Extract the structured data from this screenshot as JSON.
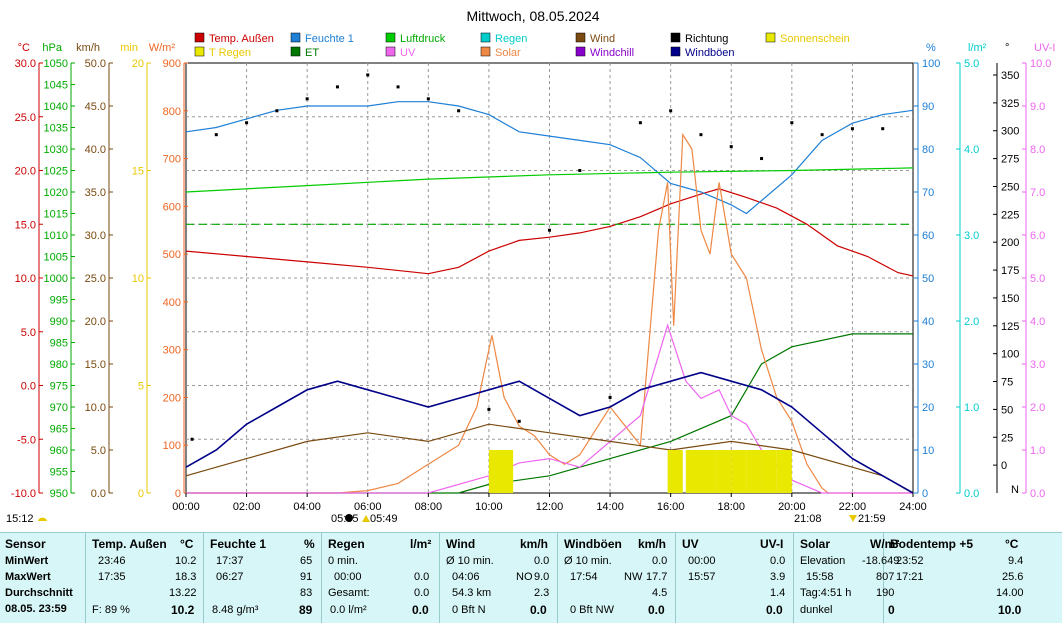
{
  "title": "Mittwoch, 08.05.2024",
  "legend": [
    {
      "label": "Temp. Außen",
      "color": "#cc0000"
    },
    {
      "label": "Feuchte 1",
      "color": "#1e7fd6"
    },
    {
      "label": "Luftdruck",
      "color": "#00cc00"
    },
    {
      "label": "Regen",
      "color": "#00cccc"
    },
    {
      "label": "Wind",
      "color": "#7a4a10"
    },
    {
      "label": "Richtung",
      "color": "#000000"
    },
    {
      "label": "Sonnenschein",
      "color": "#e8e800"
    },
    {
      "label": "T Regen",
      "color": "#e8e800"
    },
    {
      "label": "ET",
      "color": "#007700"
    },
    {
      "label": "UV",
      "color": "#ee66ee"
    },
    {
      "label": "Solar",
      "color": "#ee8844"
    },
    {
      "label": "Windchill",
      "color": "#8800cc"
    },
    {
      "label": "Windböen",
      "color": "#000088"
    }
  ],
  "axes_left": [
    {
      "unit": "°C",
      "color": "#cc0000",
      "ticks": [
        "30.0",
        "25.0",
        "20.0",
        "15.0",
        "10.0",
        "5.0",
        "0.0",
        "-5.0",
        "-10.0"
      ]
    },
    {
      "unit": "hPa",
      "color": "#00aa00",
      "ticks": [
        "1050",
        "1045",
        "1040",
        "1035",
        "1030",
        "1025",
        "1020",
        "1015",
        "1010",
        "1005",
        "1000",
        "995",
        "990",
        "985",
        "980",
        "975",
        "970",
        "965",
        "960",
        "955",
        "950"
      ]
    },
    {
      "unit": "km/h",
      "color": "#7a4a10",
      "ticks": [
        "50.0",
        "45.0",
        "40.0",
        "35.0",
        "30.0",
        "25.0",
        "20.0",
        "15.0",
        "10.0",
        "5.0",
        "0.0"
      ]
    },
    {
      "unit": "min",
      "color": "#e8c800",
      "ticks": [
        "20",
        "15",
        "10",
        "5",
        "0"
      ]
    },
    {
      "unit": "W/m²",
      "color": "#ee6622",
      "ticks": [
        "900",
        "800",
        "700",
        "600",
        "500",
        "400",
        "300",
        "200",
        "100",
        "0"
      ]
    }
  ],
  "axes_right": [
    {
      "unit": "%",
      "color": "#1e7fd6",
      "ticks": [
        "100",
        "90",
        "80",
        "70",
        "60",
        "50",
        "40",
        "30",
        "20",
        "10",
        "0"
      ]
    },
    {
      "unit": "l/m²",
      "color": "#00cccc",
      "ticks": [
        "5.0",
        "4.0",
        "3.0",
        "2.0",
        "1.0",
        "0.0"
      ]
    },
    {
      "unit": "°",
      "color": "#000000",
      "ticks": [
        "350",
        "325",
        "300",
        "275",
        "250",
        "225",
        "200",
        "175",
        "150",
        "125",
        "100",
        "75",
        "50",
        "25",
        "0"
      ],
      "bottom": "N"
    },
    {
      "unit": "UV-I",
      "color": "#ee66ee",
      "ticks": [
        "10.0",
        "9.0",
        "8.0",
        "7.0",
        "6.0",
        "5.0",
        "4.0",
        "3.0",
        "2.0",
        "1.0",
        "0.0"
      ]
    }
  ],
  "x_ticks": [
    "00:00",
    "02:00",
    "04:00",
    "06:00",
    "08:00",
    "10:00",
    "12:00",
    "14:00",
    "16:00",
    "18:00",
    "20:00",
    "22:00",
    "24:00"
  ],
  "sun_moon": {
    "moonset": "15:12",
    "sunrise": "05:49",
    "moonrise": "05:05",
    "sunset": "21:08",
    "dusk": "21:59"
  },
  "chart_data": {
    "type": "line",
    "title": "Mittwoch, 08.05.2024",
    "x_unit": "hour",
    "xlim": [
      0,
      24
    ],
    "series": [
      {
        "name": "Temp. Außen",
        "unit": "°C",
        "points": [
          [
            0,
            12.5
          ],
          [
            2,
            12.0
          ],
          [
            4,
            11.5
          ],
          [
            6,
            11.0
          ],
          [
            8,
            10.4
          ],
          [
            9,
            11.0
          ],
          [
            10,
            12.5
          ],
          [
            11,
            13.5
          ],
          [
            12,
            13.8
          ],
          [
            13,
            14.2
          ],
          [
            14,
            14.8
          ],
          [
            15,
            15.7
          ],
          [
            16,
            16.9
          ],
          [
            17,
            17.8
          ],
          [
            17.6,
            18.3
          ],
          [
            18.5,
            17.5
          ],
          [
            19.5,
            16.5
          ],
          [
            20.5,
            15.0
          ],
          [
            21.5,
            13.0
          ],
          [
            22.5,
            12.0
          ],
          [
            23.5,
            10.5
          ],
          [
            24,
            10.2
          ]
        ]
      },
      {
        "name": "Feuchte 1",
        "unit": "%",
        "points": [
          [
            0,
            84
          ],
          [
            1,
            85
          ],
          [
            2,
            87
          ],
          [
            3,
            89
          ],
          [
            4,
            90
          ],
          [
            5,
            90
          ],
          [
            6,
            90
          ],
          [
            7,
            91
          ],
          [
            8,
            91
          ],
          [
            9,
            90
          ],
          [
            10,
            88
          ],
          [
            11,
            84
          ],
          [
            12,
            83
          ],
          [
            13,
            82
          ],
          [
            14,
            81
          ],
          [
            15,
            78
          ],
          [
            16,
            72
          ],
          [
            17,
            70
          ],
          [
            18,
            67
          ],
          [
            18.5,
            65
          ],
          [
            19,
            68
          ],
          [
            20,
            74
          ],
          [
            21,
            82
          ],
          [
            22,
            86
          ],
          [
            23,
            88
          ],
          [
            24,
            89
          ]
        ]
      },
      {
        "name": "Luftdruck",
        "unit": "hPa",
        "points": [
          [
            0,
            1020.0
          ],
          [
            4,
            1021.5
          ],
          [
            8,
            1023.0
          ],
          [
            12,
            1024.0
          ],
          [
            16,
            1024.6
          ],
          [
            20,
            1025.0
          ],
          [
            24,
            1025.6
          ]
        ]
      },
      {
        "name": "T Regen",
        "unit": "°C",
        "points": [
          [
            0,
            15.0
          ],
          [
            24,
            15.0
          ]
        ]
      },
      {
        "name": "ET",
        "unit": "l/m²",
        "points": [
          [
            0,
            0.0
          ],
          [
            9,
            0.0
          ],
          [
            10,
            0.1
          ],
          [
            12,
            0.2
          ],
          [
            14,
            0.4
          ],
          [
            16,
            0.6
          ],
          [
            18,
            0.9
          ],
          [
            19,
            1.5
          ],
          [
            20,
            1.7
          ],
          [
            22,
            1.85
          ],
          [
            24,
            1.85
          ]
        ]
      },
      {
        "name": "Solar",
        "unit": "W/m²",
        "points": [
          [
            0,
            0
          ],
          [
            5,
            0
          ],
          [
            6,
            5
          ],
          [
            7,
            20
          ],
          [
            8,
            60
          ],
          [
            9,
            100
          ],
          [
            9.6,
            180
          ],
          [
            10.1,
            330
          ],
          [
            10.5,
            200
          ],
          [
            11,
            140
          ],
          [
            11.5,
            120
          ],
          [
            12,
            80
          ],
          [
            12.5,
            60
          ],
          [
            13,
            80
          ],
          [
            14,
            180
          ],
          [
            15,
            100
          ],
          [
            15.6,
            550
          ],
          [
            15.9,
            650
          ],
          [
            16.1,
            350
          ],
          [
            16.4,
            750
          ],
          [
            16.7,
            720
          ],
          [
            17,
            550
          ],
          [
            17.3,
            500
          ],
          [
            17.6,
            650
          ],
          [
            18,
            500
          ],
          [
            18.5,
            450
          ],
          [
            19,
            300
          ],
          [
            19.5,
            200
          ],
          [
            20,
            150
          ],
          [
            20.5,
            60
          ],
          [
            21,
            10
          ],
          [
            21.2,
            0
          ],
          [
            24,
            0
          ]
        ]
      },
      {
        "name": "UV",
        "unit": "UV-I",
        "points": [
          [
            0,
            0
          ],
          [
            8,
            0
          ],
          [
            10,
            0.4
          ],
          [
            11,
            0.7
          ],
          [
            12,
            0.8
          ],
          [
            13,
            0.6
          ],
          [
            14,
            1.2
          ],
          [
            15,
            1.8
          ],
          [
            15.9,
            3.9
          ],
          [
            16.5,
            2.6
          ],
          [
            17,
            2.2
          ],
          [
            17.6,
            2.4
          ],
          [
            18,
            1.8
          ],
          [
            18.5,
            1.6
          ],
          [
            19,
            1.0
          ],
          [
            20,
            0.3
          ],
          [
            21,
            0
          ],
          [
            24,
            0
          ]
        ]
      },
      {
        "name": "Wind",
        "unit": "km/h",
        "points": [
          [
            0,
            2
          ],
          [
            2,
            4
          ],
          [
            4,
            6
          ],
          [
            6,
            7
          ],
          [
            8,
            6
          ],
          [
            10,
            8
          ],
          [
            12,
            7
          ],
          [
            14,
            6
          ],
          [
            16,
            5
          ],
          [
            18,
            6
          ],
          [
            20,
            5
          ],
          [
            22,
            3
          ],
          [
            23,
            2
          ],
          [
            24,
            0
          ]
        ]
      },
      {
        "name": "Windböen",
        "unit": "km/h",
        "points": [
          [
            0,
            3
          ],
          [
            1,
            5
          ],
          [
            2,
            8
          ],
          [
            3,
            10
          ],
          [
            4,
            12
          ],
          [
            5,
            13
          ],
          [
            6,
            12
          ],
          [
            7,
            11
          ],
          [
            8,
            10
          ],
          [
            9,
            11
          ],
          [
            10,
            12
          ],
          [
            11,
            13
          ],
          [
            12,
            11
          ],
          [
            13,
            9
          ],
          [
            14,
            10
          ],
          [
            15,
            12
          ],
          [
            16,
            13
          ],
          [
            17,
            14
          ],
          [
            18,
            13
          ],
          [
            19,
            12
          ],
          [
            20,
            10
          ],
          [
            21,
            7
          ],
          [
            22,
            4
          ],
          [
            23,
            2
          ],
          [
            24,
            0
          ]
        ]
      },
      {
        "name": "Richtung",
        "unit": "°",
        "points": [
          [
            0.2,
            45
          ],
          [
            1,
            300
          ],
          [
            2,
            310
          ],
          [
            3,
            320
          ],
          [
            4,
            330
          ],
          [
            5,
            340
          ],
          [
            6,
            350
          ],
          [
            7,
            340
          ],
          [
            8,
            330
          ],
          [
            9,
            320
          ],
          [
            10,
            70
          ],
          [
            11,
            60
          ],
          [
            12,
            220
          ],
          [
            13,
            270
          ],
          [
            14,
            80
          ],
          [
            15,
            310
          ],
          [
            16,
            320
          ],
          [
            17,
            300
          ],
          [
            18,
            290
          ],
          [
            19,
            280
          ],
          [
            20,
            310
          ],
          [
            21,
            300
          ],
          [
            22,
            305
          ],
          [
            23,
            305
          ]
        ]
      },
      {
        "name": "Sonnenschein",
        "unit": "min",
        "bars": [
          [
            10,
            2
          ],
          [
            10.3,
            2
          ],
          [
            15.9,
            2
          ],
          [
            16.5,
            2
          ],
          [
            17,
            2
          ],
          [
            17.5,
            2
          ],
          [
            18,
            2
          ],
          [
            18.5,
            2
          ],
          [
            19,
            2
          ],
          [
            19.5,
            2
          ]
        ]
      }
    ]
  },
  "footer": {
    "sensor": {
      "title": "Sensor",
      "rows": [
        "MinWert",
        "MaxWert",
        "Durchschnitt",
        "08.05. 23:59"
      ]
    },
    "temp": {
      "title": "Temp. Außen",
      "unit": "°C",
      "r1a": "23:46",
      "r1b": "10.2",
      "r2a": "17:35",
      "r2b": "18.3",
      "r3b": "13.22",
      "r4a": "F: 89 %",
      "r4b": "10.2"
    },
    "feuchte": {
      "title": "Feuchte 1",
      "unit": "%",
      "r1a": "17:37",
      "r1b": "65",
      "r2a": "06:27",
      "r2b": "91",
      "r3b": "83",
      "r4a": "8.48 g/m³",
      "r4b": "89"
    },
    "regen": {
      "title": "Regen",
      "unit": "l/m²",
      "r1a": "0 min.",
      "r2a": "00:00",
      "r2b": "0.0",
      "r3a": "Gesamt:",
      "r3b": "0.0",
      "r4a": "0.0 l/m²",
      "r4b": "0.0"
    },
    "wind": {
      "title": "Wind",
      "unit": "km/h",
      "r1a": "Ø 10 min.",
      "r1b": "0.0",
      "r2a": "04:06",
      "r2m": "NO",
      "r2b": "9.0",
      "r3a": "54.3 km",
      "r3b": "2.3",
      "r4a": "0 Bft N",
      "r4b": "0.0"
    },
    "boeen": {
      "title": "Windböen",
      "unit": "km/h",
      "r1a": "Ø 10 min.",
      "r1b": "0.0",
      "r2a": "17:54",
      "r2m": "NW",
      "r2b": "17.7",
      "r3b": "4.5",
      "r4a": "0 Bft NW",
      "r4b": "0.0"
    },
    "uv": {
      "title": "UV",
      "unit": "UV-I",
      "r1a": "00:00",
      "r1b": "0.0",
      "r2a": "15:57",
      "r2b": "3.9",
      "r3b": "1.4",
      "r4b": "0.0"
    },
    "solar": {
      "title": "Solar",
      "unit": "W/m²",
      "r1a": "Elevation",
      "r1b": "-18.649",
      "r2a": "15:58",
      "r2b": "807",
      "r3a": "Tag:4:51 h",
      "r3b": "190",
      "r4a": "dunkel",
      "r4b": "0"
    },
    "boden": {
      "title": "Bodentemp +5",
      "unit": "°C",
      "r1a": "23:52",
      "r1b": "9.4",
      "r2a": "17:21",
      "r2b": "25.6",
      "r3b": "14.00",
      "r4b": "10.0"
    }
  }
}
